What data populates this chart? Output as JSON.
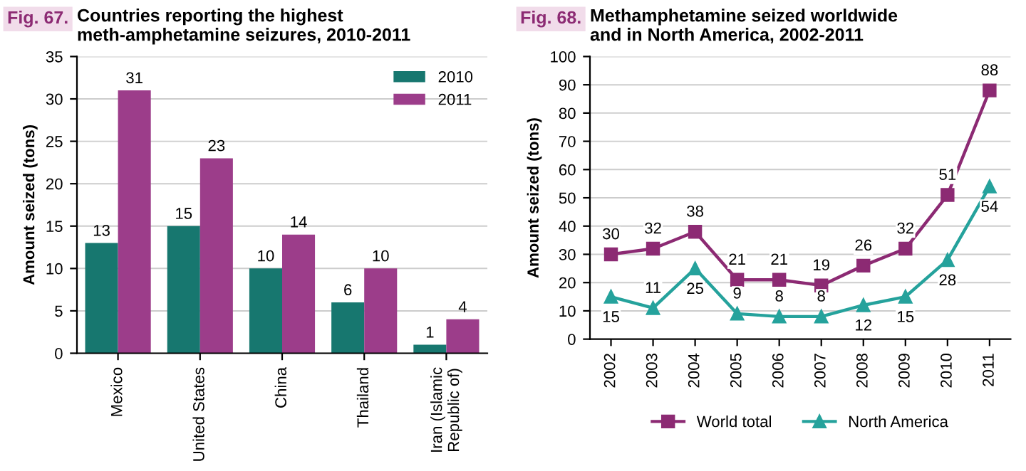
{
  "chart_data": [
    {
      "type": "bar",
      "title": "Countries reporting the highest meth-amphetamine seizures, 2010-2011",
      "ylabel": "Amount seized (tons)",
      "annotations": [
        "Fig. 67."
      ],
      "categories": [
        "Mexico",
        "United States",
        "China",
        "Thailand",
        "Iran (Islamic Republic of)"
      ],
      "series": [
        {
          "name": "2010",
          "color": "#17776f",
          "values": [
            13,
            15,
            10,
            6,
            1
          ]
        },
        {
          "name": "2011",
          "color": "#9c3d8a",
          "values": [
            31,
            23,
            14,
            10,
            4
          ]
        }
      ],
      "ylim": [
        0,
        35
      ],
      "yticks": [
        0,
        5,
        10,
        15,
        20,
        25,
        30,
        35
      ],
      "grid": "y",
      "legend": "top right",
      "data_labels": true
    },
    {
      "type": "line",
      "title": "Methamphetamine seized worldwide and in North America, 2002-2011",
      "ylabel": "Amount seized (tons)",
      "annotations": [
        "Fig. 68."
      ],
      "categories": [
        "2002",
        "2003",
        "2004",
        "2005",
        "2006",
        "2007",
        "2008",
        "2009",
        "2010",
        "2011"
      ],
      "series": [
        {
          "name": "World total",
          "color": "#8c2a73",
          "marker": "square",
          "values": [
            30,
            32,
            38,
            21,
            21,
            19,
            26,
            32,
            51,
            88
          ]
        },
        {
          "name": "North America",
          "color": "#25a29c",
          "marker": "triangle",
          "values": [
            15,
            11,
            25,
            9,
            8,
            8,
            12,
            15,
            28,
            54
          ]
        }
      ],
      "ylim": [
        0,
        100
      ],
      "yticks": [
        0,
        10,
        20,
        30,
        40,
        50,
        60,
        70,
        80,
        90,
        100
      ],
      "grid": "y",
      "legend": "bottom",
      "data_labels": true
    }
  ]
}
